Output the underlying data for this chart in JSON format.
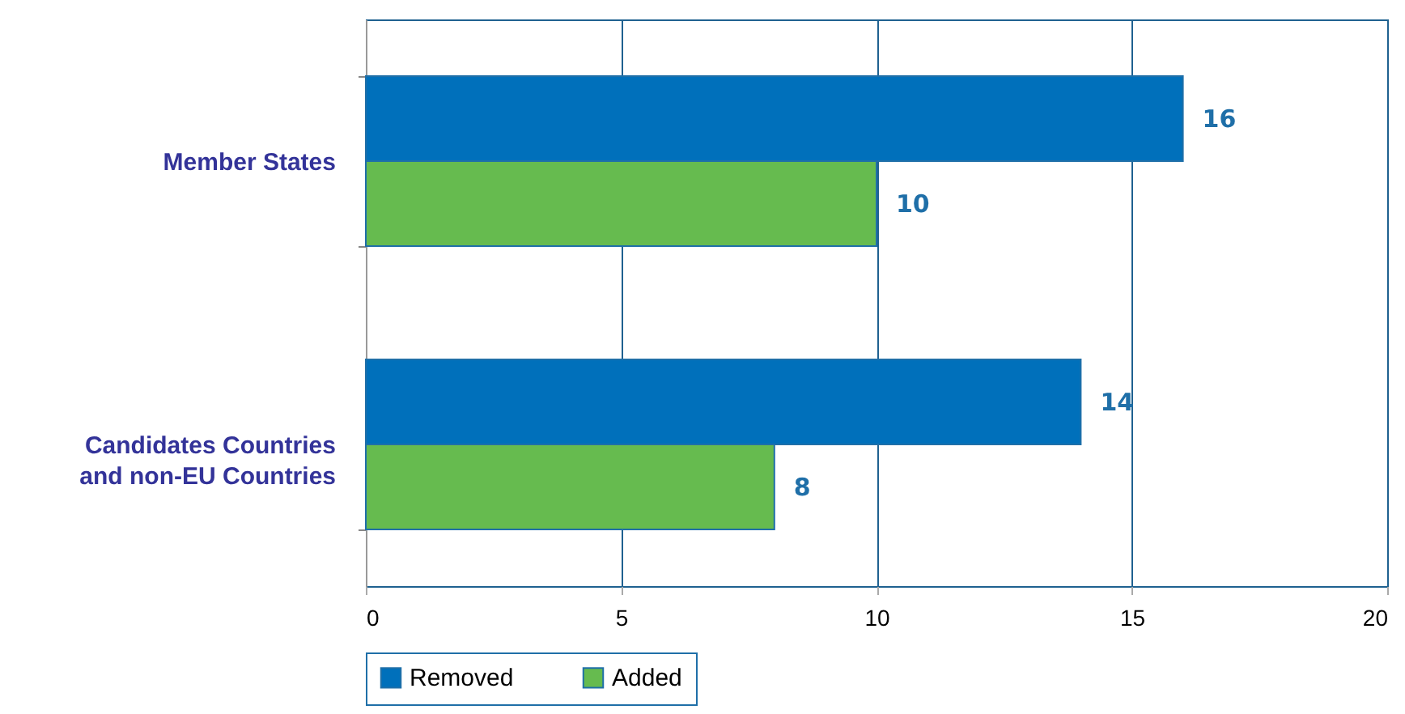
{
  "chart_data": {
    "type": "bar",
    "orientation": "horizontal",
    "categories": [
      "Member States",
      "Candidates Countries\nand non-EU Countries"
    ],
    "series": [
      {
        "name": "Removed",
        "color": "#0070bb",
        "values": [
          16,
          14
        ]
      },
      {
        "name": "Added",
        "color": "#66bb4f",
        "values": [
          10,
          8
        ]
      }
    ],
    "xlim": [
      0,
      20
    ],
    "xticks": [
      0,
      5,
      10,
      15,
      20
    ],
    "grid": "x",
    "legend": "bottom",
    "data_labels": true
  }
}
